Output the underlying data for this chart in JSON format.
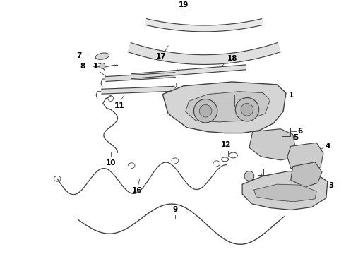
{
  "bg_color": "#ffffff",
  "line_color": "#404040",
  "label_color": "#000000",
  "label_fontsize": 7.5,
  "fig_width": 4.9,
  "fig_height": 3.6,
  "dpi": 100
}
